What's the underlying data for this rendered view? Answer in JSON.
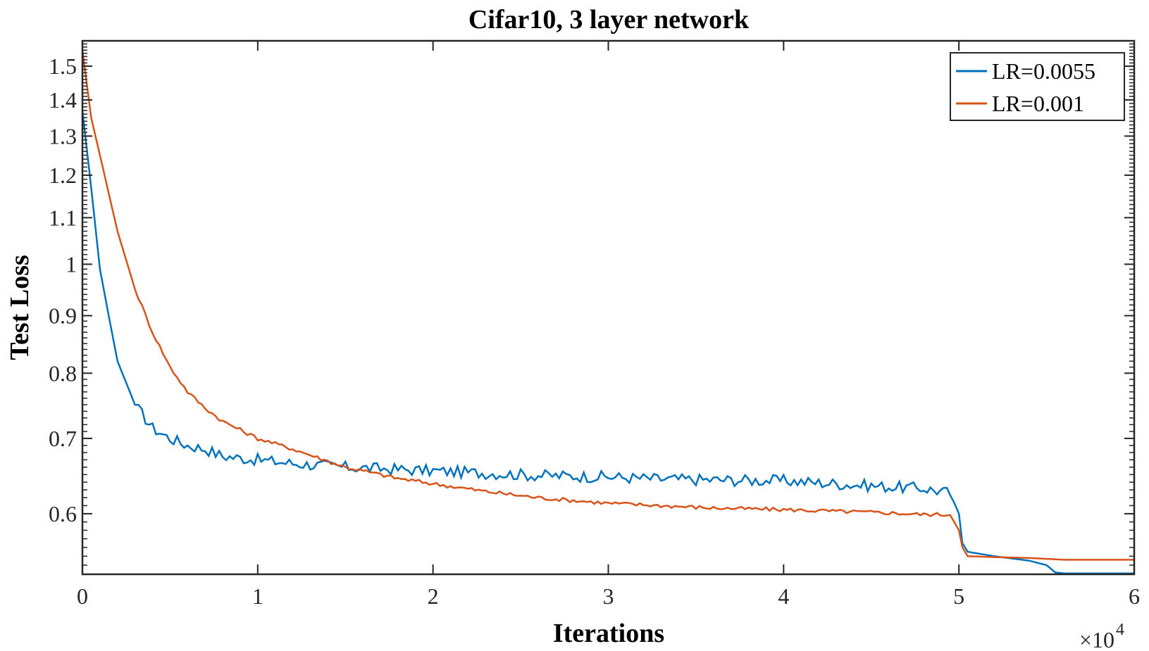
{
  "chart_data": {
    "type": "line",
    "title": "Cifar10, 3 layer network",
    "xlabel": "Iterations",
    "ylabel": "Test Loss",
    "x_multiplier_label": "×10",
    "x_multiplier_exponent": "4",
    "xlim": [
      0,
      6
    ],
    "ylim": [
      0.53,
      1.58
    ],
    "yscale": "log",
    "x_ticks": [
      0,
      1,
      2,
      3,
      4,
      5,
      6
    ],
    "x_tick_labels": [
      "0",
      "1",
      "2",
      "3",
      "4",
      "5",
      "6"
    ],
    "y_ticks": [
      0.6,
      0.7,
      0.8,
      0.9,
      1.0,
      1.1,
      1.2,
      1.3,
      1.4,
      1.5
    ],
    "y_tick_labels": [
      "0.6",
      "0.7",
      "0.8",
      "0.9",
      "1",
      "1.1",
      "1.2",
      "1.3",
      "1.4",
      "1.5"
    ],
    "grid": false,
    "legend_position": "top-right",
    "series": [
      {
        "name": "LR=0.0055",
        "color": "#0072BD",
        "x": [
          0,
          0.05,
          0.1,
          0.15,
          0.2,
          0.3,
          0.4,
          0.5,
          0.6,
          0.7,
          0.8,
          1.0,
          1.2,
          1.5,
          1.8,
          2.0,
          2.3,
          2.6,
          3.0,
          3.3,
          3.6,
          4.0,
          4.3,
          4.6,
          4.8,
          4.95,
          5.0,
          5.02,
          5.05,
          5.2,
          5.4,
          5.5,
          5.55,
          5.6,
          5.8,
          6.0
        ],
        "y": [
          1.37,
          1.17,
          0.99,
          0.9,
          0.82,
          0.75,
          0.715,
          0.7,
          0.69,
          0.685,
          0.675,
          0.67,
          0.665,
          0.66,
          0.657,
          0.655,
          0.652,
          0.649,
          0.647,
          0.644,
          0.643,
          0.642,
          0.638,
          0.634,
          0.632,
          0.626,
          0.6,
          0.565,
          0.555,
          0.55,
          0.545,
          0.54,
          0.532,
          0.531,
          0.531,
          0.531
        ]
      },
      {
        "name": "LR=0.001",
        "color": "#D95319",
        "x": [
          0,
          0.05,
          0.1,
          0.2,
          0.3,
          0.4,
          0.5,
          0.6,
          0.7,
          0.8,
          1.0,
          1.2,
          1.5,
          1.8,
          2.0,
          2.3,
          2.6,
          3.0,
          3.3,
          3.6,
          4.0,
          4.3,
          4.6,
          4.8,
          4.95,
          5.0,
          5.02,
          5.05,
          5.2,
          5.4,
          5.6,
          6.0
        ],
        "y": [
          1.55,
          1.35,
          1.25,
          1.07,
          0.95,
          0.87,
          0.81,
          0.77,
          0.745,
          0.725,
          0.7,
          0.685,
          0.66,
          0.645,
          0.638,
          0.628,
          0.62,
          0.613,
          0.61,
          0.607,
          0.605,
          0.603,
          0.601,
          0.599,
          0.599,
          0.58,
          0.56,
          0.55,
          0.549,
          0.548,
          0.546,
          0.546
        ]
      }
    ]
  }
}
